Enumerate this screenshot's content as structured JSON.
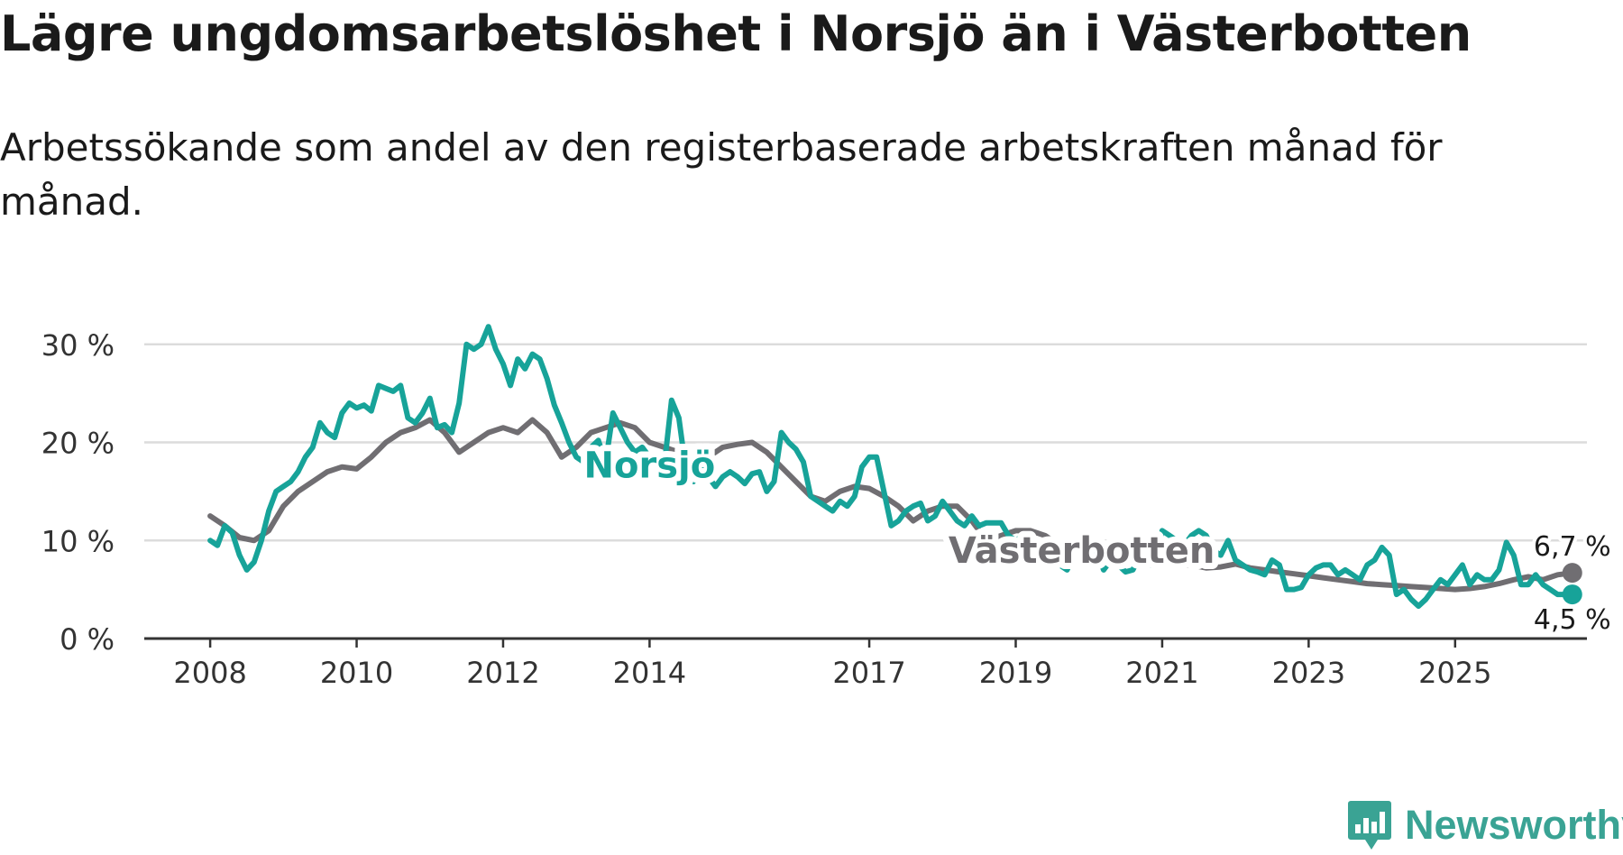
{
  "title": "Lägre ungdomsarbetslöshet i Norsjö än i Västerbotten",
  "subtitle": "Arbetssökande som andel av den registerbaserade arbetskraften månad för månad.",
  "branding": {
    "name": "Newsworthy",
    "icon": "newsworthy-logo-icon"
  },
  "colors": {
    "norsjo": "#17a399",
    "vasterbotten": "#706e72",
    "grid": "#dcdcdc",
    "axis": "#333333",
    "brand": "#3aa394"
  },
  "chart_data": {
    "type": "line",
    "title": "Lägre ungdomsarbetslöshet i Norsjö än i Västerbotten",
    "ylabel": "",
    "xlabel": "",
    "y_unit": "%",
    "ylim": [
      0,
      32
    ],
    "xlim": [
      2007.1,
      2026.8
    ],
    "y_ticks": [
      {
        "value": 0,
        "label": "0 %"
      },
      {
        "value": 10,
        "label": "10 %"
      },
      {
        "value": 20,
        "label": "20 %"
      },
      {
        "value": 30,
        "label": "30 %"
      }
    ],
    "x_ticks": [
      {
        "value": 2008,
        "label": "2008"
      },
      {
        "value": 2010,
        "label": "2010"
      },
      {
        "value": 2012,
        "label": "2012"
      },
      {
        "value": 2014,
        "label": "2014"
      },
      {
        "value": 2017,
        "label": "2017"
      },
      {
        "value": 2019,
        "label": "2019"
      },
      {
        "value": 2021,
        "label": "2021"
      },
      {
        "value": 2023,
        "label": "2023"
      },
      {
        "value": 2025,
        "label": "2025"
      }
    ],
    "grid": true,
    "series": [
      {
        "name": "Västerbotten",
        "key": "vasterbotten",
        "label": "Västerbotten",
        "label_x": 2019.9,
        "label_y": 9.0,
        "end_value_label": "6,7 %",
        "points": [
          [
            2008.0,
            12.5
          ],
          [
            2008.2,
            11.5
          ],
          [
            2008.4,
            10.3
          ],
          [
            2008.6,
            10.0
          ],
          [
            2008.8,
            11.0
          ],
          [
            2009.0,
            13.5
          ],
          [
            2009.2,
            15.0
          ],
          [
            2009.4,
            16.0
          ],
          [
            2009.6,
            17.0
          ],
          [
            2009.8,
            17.5
          ],
          [
            2010.0,
            17.3
          ],
          [
            2010.2,
            18.5
          ],
          [
            2010.4,
            20.0
          ],
          [
            2010.6,
            21.0
          ],
          [
            2010.8,
            21.5
          ],
          [
            2011.0,
            22.3
          ],
          [
            2011.2,
            21.0
          ],
          [
            2011.4,
            19.0
          ],
          [
            2011.6,
            20.0
          ],
          [
            2011.8,
            21.0
          ],
          [
            2012.0,
            21.5
          ],
          [
            2012.2,
            21.0
          ],
          [
            2012.4,
            22.3
          ],
          [
            2012.6,
            21.0
          ],
          [
            2012.8,
            18.5
          ],
          [
            2013.0,
            19.5
          ],
          [
            2013.2,
            21.0
          ],
          [
            2013.4,
            21.5
          ],
          [
            2013.6,
            22.0
          ],
          [
            2013.8,
            21.5
          ],
          [
            2014.0,
            20.0
          ],
          [
            2014.2,
            19.5
          ],
          [
            2014.4,
            19.0
          ],
          [
            2014.6,
            17.5
          ],
          [
            2014.8,
            18.5
          ],
          [
            2015.0,
            19.5
          ],
          [
            2015.2,
            19.8
          ],
          [
            2015.4,
            20.0
          ],
          [
            2015.6,
            19.0
          ],
          [
            2015.8,
            17.5
          ],
          [
            2016.0,
            16.0
          ],
          [
            2016.2,
            14.5
          ],
          [
            2016.4,
            14.0
          ],
          [
            2016.6,
            15.0
          ],
          [
            2016.8,
            15.5
          ],
          [
            2017.0,
            15.3
          ],
          [
            2017.2,
            14.5
          ],
          [
            2017.4,
            13.5
          ],
          [
            2017.6,
            12.0
          ],
          [
            2017.8,
            13.0
          ],
          [
            2018.0,
            13.5
          ],
          [
            2018.2,
            13.5
          ],
          [
            2018.4,
            12.0
          ],
          [
            2018.6,
            10.0
          ],
          [
            2018.8,
            10.5
          ],
          [
            2019.0,
            11.0
          ],
          [
            2019.2,
            11.0
          ],
          [
            2019.4,
            10.5
          ],
          [
            2019.6,
            9.5
          ],
          [
            2019.8,
            8.5
          ],
          [
            2020.0,
            9.3
          ],
          [
            2020.2,
            9.6
          ],
          [
            2020.4,
            9.5
          ],
          [
            2020.6,
            9.0
          ],
          [
            2020.8,
            8.3
          ],
          [
            2021.0,
            7.7
          ],
          [
            2021.2,
            7.4
          ],
          [
            2021.4,
            7.5
          ],
          [
            2021.6,
            7.2
          ],
          [
            2021.8,
            7.3
          ],
          [
            2022.0,
            7.6
          ],
          [
            2022.2,
            7.2
          ],
          [
            2022.4,
            7.0
          ],
          [
            2022.6,
            6.8
          ],
          [
            2022.8,
            6.6
          ],
          [
            2023.0,
            6.4
          ],
          [
            2023.2,
            6.2
          ],
          [
            2023.4,
            6.0
          ],
          [
            2023.6,
            5.8
          ],
          [
            2023.8,
            5.6
          ],
          [
            2024.0,
            5.5
          ],
          [
            2024.2,
            5.4
          ],
          [
            2024.4,
            5.3
          ],
          [
            2024.6,
            5.2
          ],
          [
            2024.8,
            5.1
          ],
          [
            2025.0,
            5.0
          ],
          [
            2025.2,
            5.1
          ],
          [
            2025.4,
            5.3
          ],
          [
            2025.6,
            5.6
          ],
          [
            2025.8,
            6.0
          ],
          [
            2026.0,
            6.3
          ],
          [
            2026.2,
            6.0
          ],
          [
            2026.4,
            6.5
          ],
          [
            2026.6,
            6.7
          ]
        ]
      },
      {
        "name": "Norsjö",
        "key": "norsjo",
        "label": "Norsjö",
        "label_x": 2014.0,
        "label_y": 17.7,
        "end_value_label": "4,5 %",
        "points": [
          [
            2008.0,
            10.0
          ],
          [
            2008.1,
            9.5
          ],
          [
            2008.2,
            11.5
          ],
          [
            2008.3,
            10.8
          ],
          [
            2008.4,
            8.5
          ],
          [
            2008.5,
            7.0
          ],
          [
            2008.6,
            7.8
          ],
          [
            2008.7,
            10.0
          ],
          [
            2008.8,
            13.0
          ],
          [
            2008.9,
            15.0
          ],
          [
            2009.0,
            15.5
          ],
          [
            2009.1,
            16.0
          ],
          [
            2009.2,
            17.0
          ],
          [
            2009.3,
            18.5
          ],
          [
            2009.4,
            19.5
          ],
          [
            2009.5,
            22.0
          ],
          [
            2009.6,
            21.0
          ],
          [
            2009.7,
            20.5
          ],
          [
            2009.8,
            23.0
          ],
          [
            2009.9,
            24.0
          ],
          [
            2010.0,
            23.5
          ],
          [
            2010.1,
            23.8
          ],
          [
            2010.2,
            23.2
          ],
          [
            2010.3,
            25.8
          ],
          [
            2010.4,
            25.5
          ],
          [
            2010.5,
            25.2
          ],
          [
            2010.6,
            25.8
          ],
          [
            2010.7,
            22.5
          ],
          [
            2010.8,
            22.0
          ],
          [
            2010.9,
            23.0
          ],
          [
            2011.0,
            24.5
          ],
          [
            2011.1,
            21.5
          ],
          [
            2011.2,
            21.8
          ],
          [
            2011.3,
            21.0
          ],
          [
            2011.4,
            24.0
          ],
          [
            2011.5,
            30.0
          ],
          [
            2011.6,
            29.5
          ],
          [
            2011.7,
            30.0
          ],
          [
            2011.8,
            31.8
          ],
          [
            2011.9,
            29.5
          ],
          [
            2012.0,
            28.0
          ],
          [
            2012.1,
            25.8
          ],
          [
            2012.2,
            28.5
          ],
          [
            2012.3,
            27.5
          ],
          [
            2012.4,
            29.0
          ],
          [
            2012.5,
            28.5
          ],
          [
            2012.6,
            26.5
          ],
          [
            2012.7,
            23.8
          ],
          [
            2012.8,
            22.0
          ],
          [
            2012.9,
            20.0
          ],
          [
            2013.0,
            18.5
          ],
          [
            2013.1,
            18.0
          ],
          [
            2013.2,
            19.5
          ],
          [
            2013.3,
            20.2
          ],
          [
            2013.4,
            18.0
          ],
          [
            2013.5,
            23.0
          ],
          [
            2013.6,
            21.5
          ],
          [
            2013.7,
            20.0
          ],
          [
            2013.8,
            19.0
          ],
          [
            2013.9,
            19.5
          ],
          [
            2014.0,
            18.5
          ],
          [
            2014.1,
            18.0
          ],
          [
            2014.2,
            17.5
          ],
          [
            2014.3,
            24.3
          ],
          [
            2014.4,
            22.5
          ],
          [
            2014.5,
            17.0
          ],
          [
            2014.6,
            16.0
          ],
          [
            2014.7,
            17.5
          ],
          [
            2014.8,
            16.5
          ],
          [
            2014.9,
            15.5
          ],
          [
            2015.0,
            16.5
          ],
          [
            2015.1,
            17.0
          ],
          [
            2015.2,
            16.5
          ],
          [
            2015.3,
            15.8
          ],
          [
            2015.4,
            16.8
          ],
          [
            2015.5,
            17.0
          ],
          [
            2015.6,
            15.0
          ],
          [
            2015.7,
            16.0
          ],
          [
            2015.8,
            21.0
          ],
          [
            2015.9,
            20.0
          ],
          [
            2016.0,
            19.3
          ],
          [
            2016.1,
            18.0
          ],
          [
            2016.2,
            14.5
          ],
          [
            2016.3,
            14.0
          ],
          [
            2016.4,
            13.5
          ],
          [
            2016.5,
            13.0
          ],
          [
            2016.6,
            14.0
          ],
          [
            2016.7,
            13.5
          ],
          [
            2016.8,
            14.5
          ],
          [
            2016.9,
            17.5
          ],
          [
            2017.0,
            18.5
          ],
          [
            2017.1,
            18.5
          ],
          [
            2017.2,
            15.0
          ],
          [
            2017.3,
            11.5
          ],
          [
            2017.4,
            12.0
          ],
          [
            2017.5,
            13.0
          ],
          [
            2017.6,
            13.5
          ],
          [
            2017.7,
            13.8
          ],
          [
            2017.8,
            12.0
          ],
          [
            2017.9,
            12.5
          ],
          [
            2018.0,
            14.0
          ],
          [
            2018.1,
            13.0
          ],
          [
            2018.2,
            12.0
          ],
          [
            2018.3,
            11.5
          ],
          [
            2018.4,
            12.5
          ],
          [
            2018.5,
            11.5
          ],
          [
            2018.6,
            11.8
          ],
          [
            2018.7,
            11.8
          ],
          [
            2018.8,
            11.8
          ],
          [
            2018.9,
            10.5
          ],
          [
            2019.0,
            10.0
          ],
          [
            2019.1,
            10.5
          ],
          [
            2019.2,
            9.0
          ],
          [
            2019.3,
            7.5
          ],
          [
            2019.4,
            9.0
          ],
          [
            2019.5,
            8.0
          ],
          [
            2019.6,
            7.5
          ],
          [
            2019.7,
            7.0
          ],
          [
            2019.8,
            8.5
          ],
          [
            2019.9,
            10.0
          ],
          [
            2020.0,
            10.5
          ],
          [
            2020.1,
            9.0
          ],
          [
            2020.2,
            7.0
          ],
          [
            2020.3,
            8.0
          ],
          [
            2020.4,
            7.5
          ],
          [
            2020.5,
            6.8
          ],
          [
            2020.6,
            7.0
          ],
          [
            2020.7,
            8.5
          ],
          [
            2020.8,
            7.5
          ],
          [
            2020.9,
            7.5
          ],
          [
            2021.0,
            11.0
          ],
          [
            2021.1,
            10.5
          ],
          [
            2021.2,
            10.0
          ],
          [
            2021.3,
            9.5
          ],
          [
            2021.4,
            10.5
          ],
          [
            2021.5,
            11.0
          ],
          [
            2021.6,
            10.5
          ],
          [
            2021.7,
            9.0
          ],
          [
            2021.8,
            8.5
          ],
          [
            2021.9,
            10.0
          ],
          [
            2022.0,
            8.0
          ],
          [
            2022.1,
            7.5
          ],
          [
            2022.2,
            7.0
          ],
          [
            2022.3,
            6.8
          ],
          [
            2022.4,
            6.5
          ],
          [
            2022.5,
            8.0
          ],
          [
            2022.6,
            7.5
          ],
          [
            2022.7,
            5.0
          ],
          [
            2022.8,
            5.0
          ],
          [
            2022.9,
            5.2
          ],
          [
            2023.0,
            6.5
          ],
          [
            2023.1,
            7.2
          ],
          [
            2023.2,
            7.5
          ],
          [
            2023.3,
            7.5
          ],
          [
            2023.4,
            6.5
          ],
          [
            2023.5,
            7.0
          ],
          [
            2023.6,
            6.5
          ],
          [
            2023.7,
            6.0
          ],
          [
            2023.8,
            7.5
          ],
          [
            2023.9,
            8.0
          ],
          [
            2024.0,
            9.3
          ],
          [
            2024.1,
            8.5
          ],
          [
            2024.2,
            4.5
          ],
          [
            2024.3,
            5.0
          ],
          [
            2024.4,
            4.0
          ],
          [
            2024.5,
            3.3
          ],
          [
            2024.6,
            4.0
          ],
          [
            2024.7,
            5.0
          ],
          [
            2024.8,
            6.0
          ],
          [
            2024.9,
            5.5
          ],
          [
            2025.0,
            6.5
          ],
          [
            2025.1,
            7.5
          ],
          [
            2025.2,
            5.5
          ],
          [
            2025.3,
            6.5
          ],
          [
            2025.4,
            6.0
          ],
          [
            2025.5,
            6.0
          ],
          [
            2025.6,
            7.0
          ],
          [
            2025.7,
            9.8
          ],
          [
            2025.8,
            8.5
          ],
          [
            2025.9,
            5.5
          ],
          [
            2026.0,
            5.5
          ],
          [
            2026.1,
            6.5
          ],
          [
            2026.2,
            5.5
          ],
          [
            2026.3,
            5.0
          ],
          [
            2026.4,
            4.5
          ],
          [
            2026.6,
            4.5
          ]
        ]
      }
    ]
  }
}
